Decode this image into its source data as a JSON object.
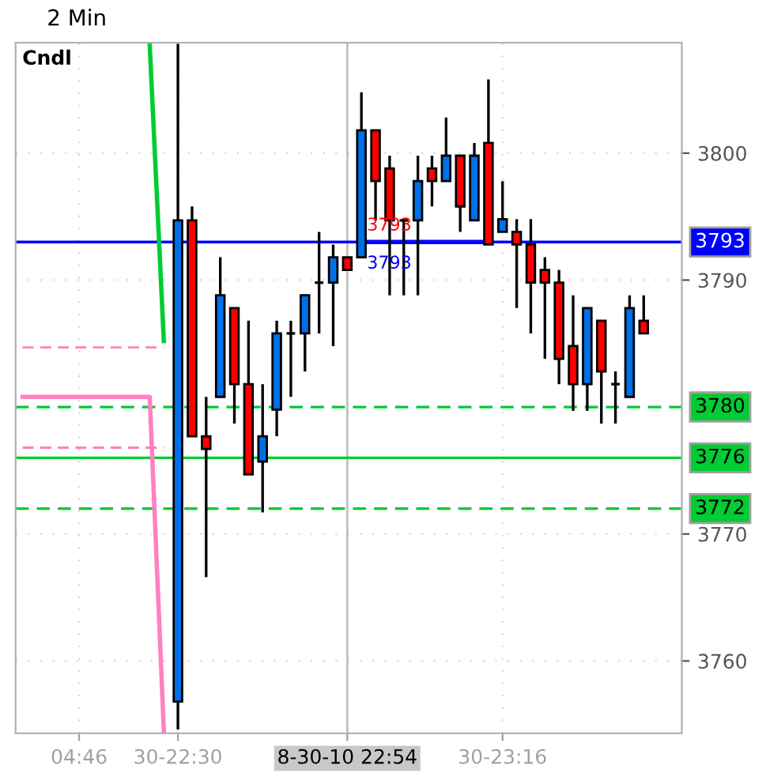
{
  "chart_data": {
    "type": "candlestick",
    "title": "2 Min",
    "subtitle": "Cndl",
    "categories": [
      null,
      null,
      null,
      null,
      "04:46",
      null,
      null,
      null,
      null,
      null,
      null,
      "30-22:30",
      null,
      null,
      null,
      null,
      null,
      null,
      null,
      null,
      null,
      null,
      null,
      "8-30-10 22:54",
      null,
      null,
      null,
      null,
      null,
      null,
      null,
      null,
      null,
      null,
      "30-23:16",
      null,
      null,
      null,
      null,
      null,
      null,
      null,
      null,
      null,
      null
    ],
    "ohlc": [
      null,
      null,
      null,
      null,
      null,
      null,
      null,
      null,
      null,
      null,
      null,
      [
        3756.8,
        3808.6,
        3754.6,
        3794.7
      ],
      [
        3794.7,
        3795.8,
        3777.7,
        3777.7
      ],
      [
        3777.7,
        3780.8,
        3766.6,
        3776.7
      ],
      [
        3780.8,
        3791.8,
        3780.8,
        3788.8
      ],
      [
        3787.8,
        3787.8,
        3778.7,
        3781.8
      ],
      [
        3781.8,
        3786.8,
        3774.7,
        3774.7
      ],
      [
        3775.7,
        3781.8,
        3771.7,
        3777.7
      ],
      [
        3779.8,
        3786.8,
        3777.7,
        3785.8
      ],
      [
        3785.8,
        3786.8,
        3780.8,
        3785.8
      ],
      [
        3785.8,
        3788.8,
        3782.8,
        3788.8
      ],
      [
        3789.8,
        3793.8,
        3785.8,
        3789.8
      ],
      [
        3789.8,
        3792.8,
        3784.8,
        3791.8
      ],
      [
        3791.8,
        3791.8,
        3790.8,
        3790.8
      ],
      [
        3791.8,
        3804.8,
        3791.8,
        3801.8
      ],
      [
        3801.8,
        3801.8,
        3794.7,
        3797.8
      ],
      [
        3798.8,
        3799.8,
        3788.8,
        3794.7
      ],
      [
        3794.7,
        3794.7,
        3788.8,
        3794.7
      ],
      [
        3794.7,
        3799.8,
        3788.8,
        3797.8
      ],
      [
        3798.8,
        3799.8,
        3795.8,
        3797.8
      ],
      [
        3797.8,
        3802.8,
        3797.8,
        3799.8
      ],
      [
        3799.8,
        3799.8,
        3793.8,
        3795.8
      ],
      [
        3794.7,
        3800.8,
        3794.7,
        3799.8
      ],
      [
        3800.8,
        3805.8,
        3792.8,
        3792.8
      ],
      [
        3793.8,
        3797.8,
        3793.8,
        3794.8
      ],
      [
        3793.8,
        3794.8,
        3787.8,
        3792.8
      ],
      [
        3792.8,
        3794.8,
        3785.8,
        3789.8
      ],
      [
        3790.8,
        3791.8,
        3783.8,
        3789.8
      ],
      [
        3789.8,
        3790.8,
        3781.8,
        3783.8
      ],
      [
        3784.8,
        3788.8,
        3779.7,
        3781.8
      ],
      [
        3781.8,
        3787.8,
        3779.7,
        3787.8
      ],
      [
        3786.8,
        3786.8,
        3778.7,
        3782.8
      ],
      [
        3781.8,
        3782.8,
        3778.7,
        3781.8
      ],
      [
        3780.8,
        3788.8,
        3780.8,
        3787.8
      ],
      [
        3786.8,
        3788.8,
        3785.8,
        3785.8
      ]
    ],
    "colors": [
      null,
      null,
      null,
      null,
      null,
      null,
      null,
      null,
      null,
      null,
      null,
      "#0070e8",
      "#ff0000",
      "#ff0000",
      "#0070e8",
      "#ff0000",
      "#ff0000",
      "#0070e8",
      "#0070e8",
      "#000000",
      "#0070e8",
      "#000000",
      "#0070e8",
      "#ff0000",
      "#0070e8",
      "#ff0000",
      "#ff0000",
      "#000000",
      "#0070e8",
      "#ff0000",
      "#0070e8",
      "#ff0000",
      "#0070e8",
      "#ff0000",
      "#0070e8",
      "#ff0000",
      "#ff0000",
      "#ff0000",
      "#ff0000",
      "#ff0000",
      "#0070e8",
      "#ff0000",
      "#000000",
      "#0070e8",
      "#ff0000"
    ],
    "series": [
      {
        "type": "line",
        "color": "#ff80c0",
        "line_style": "solid",
        "values": [
          3780.8,
          3780.8,
          3780.8,
          3780.8,
          3780.8,
          3780.8,
          3780.8,
          3780.8,
          3780.8,
          3780.8,
          3754.5,
          null,
          null,
          null,
          null,
          null,
          null,
          null,
          null,
          null,
          null,
          null,
          null,
          null,
          null,
          null,
          null,
          null,
          null,
          null,
          null,
          null,
          null,
          null,
          null,
          null,
          null,
          null,
          null,
          null,
          null,
          null,
          null,
          null,
          null
        ]
      },
      {
        "type": "line",
        "color": "#ff80c0",
        "line_style": "dashed",
        "values": [
          3784.7,
          3784.7,
          3784.7,
          3784.7,
          3784.7,
          3784.7,
          3784.7,
          3784.7,
          3784.7,
          3784.7,
          3784.7,
          null,
          null,
          null,
          null,
          null,
          null,
          null,
          null,
          null,
          null,
          null,
          null,
          null,
          null,
          null,
          null,
          null,
          null,
          null,
          null,
          null,
          null,
          null,
          null,
          null,
          null,
          null,
          null,
          null,
          null,
          null,
          null,
          null,
          null
        ]
      },
      {
        "type": "line",
        "color": "#ff80c0",
        "line_style": "dashed",
        "values": [
          3776.8,
          3776.8,
          3776.8,
          3776.8,
          3776.8,
          3776.8,
          3776.8,
          3776.8,
          3776.8,
          3776.8,
          3776.8,
          null,
          null,
          null,
          null,
          null,
          null,
          null,
          null,
          null,
          null,
          null,
          null,
          null,
          null,
          null,
          null,
          null,
          null,
          null,
          null,
          null,
          null,
          null,
          null,
          null,
          null,
          null,
          null,
          null,
          null,
          null,
          null,
          null,
          null
        ]
      },
      {
        "type": "line",
        "color": "#00cc33",
        "line_style": "solid",
        "values": [
          null,
          null,
          null,
          null,
          null,
          null,
          null,
          null,
          null,
          3808.5,
          3785.2,
          null,
          null,
          null,
          null,
          null,
          null,
          null,
          null,
          null,
          null,
          null,
          null,
          null,
          null,
          null,
          null,
          null,
          null,
          null,
          null,
          null,
          null,
          null,
          null,
          null,
          null,
          null,
          null,
          null,
          null,
          null,
          null,
          null,
          null
        ]
      },
      {
        "type": "line",
        "color": "#0000ff",
        "line_style": "solid",
        "values": [
          null,
          null,
          null,
          null,
          null,
          null,
          null,
          null,
          null,
          null,
          null,
          null,
          null,
          null,
          null,
          null,
          null,
          null,
          null,
          null,
          null,
          null,
          null,
          null,
          3793,
          3793,
          3793,
          3793,
          3793,
          3793,
          3793,
          3793,
          3793,
          3793,
          null,
          null,
          null,
          null,
          null,
          null,
          null,
          null,
          null,
          null,
          null
        ]
      }
    ],
    "ref_lines": [
      {
        "axis": "y",
        "value": 3793,
        "label": "3793",
        "color": "#0000ff",
        "line_style": "solid"
      },
      {
        "axis": "y",
        "value": 3780,
        "label": "3780",
        "color": "#00cc33",
        "line_style": "dashed"
      },
      {
        "axis": "y",
        "value": 3776,
        "label": "3776",
        "color": "#00cc33",
        "line_style": "solid"
      },
      {
        "axis": "y",
        "value": 3772,
        "label": "3772",
        "color": "#00cc33",
        "line_style": "dashed"
      },
      {
        "axis": "x",
        "value": "8-30-10 22:54",
        "color": "#c0c0c0",
        "line_style": "solid"
      }
    ],
    "annotations": [
      "3793",
      "3793"
    ],
    "ylim": [
      3754.3,
      3808.7
    ],
    "yticks": [
      3760,
      3770,
      3790,
      3800
    ],
    "grid": true
  }
}
